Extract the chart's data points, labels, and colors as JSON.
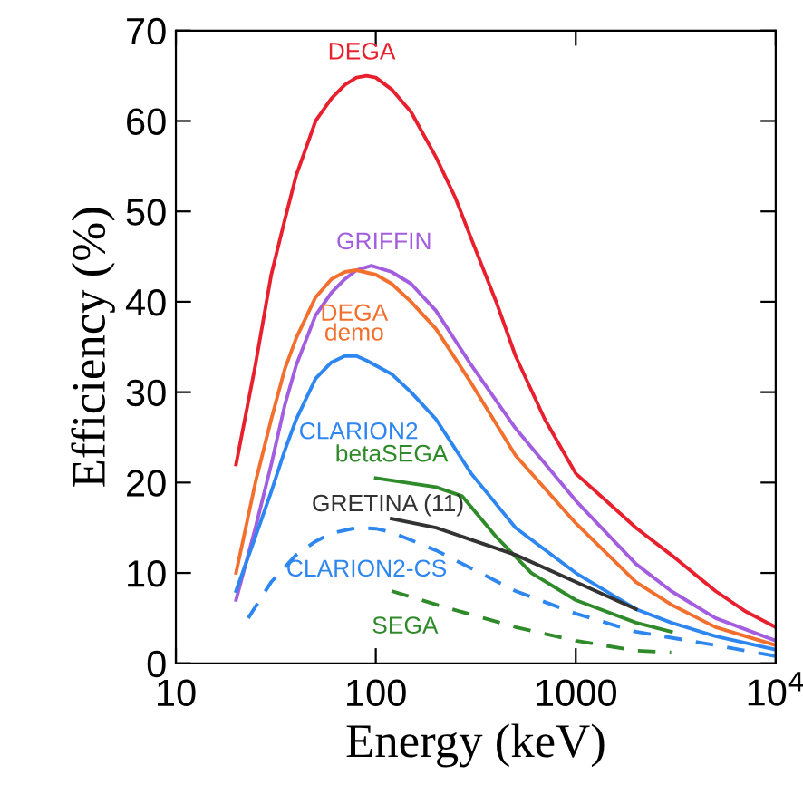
{
  "chart_data": {
    "type": "line",
    "xlabel": "Energy (keV)",
    "ylabel": "Efficiency (%)",
    "log": "x",
    "xlim": [
      10,
      10000
    ],
    "xticks": [
      10,
      100,
      1000,
      {
        "value": 10000,
        "label": "10$^{4}$"
      }
    ],
    "ylim": [
      0,
      70
    ],
    "yticks": [
      0,
      10,
      20,
      30,
      40,
      50,
      60,
      70
    ],
    "grid": false,
    "legend": false,
    "marker": "none",
    "series": [
      {
        "name": "DEGA",
        "color": "#e8202e",
        "line_style": "solid",
        "x": [
          20,
          25,
          30,
          35,
          40,
          50,
          60,
          70,
          80,
          90,
          100,
          120,
          150,
          200,
          250,
          300,
          400,
          500,
          700,
          1000,
          1500,
          2000,
          3000,
          5000,
          7000,
          10000
        ],
        "values": [
          22,
          33,
          43,
          49,
          54,
          60,
          62.5,
          64,
          64.8,
          65,
          64.8,
          63.5,
          61,
          56,
          51.5,
          47,
          40,
          34,
          27,
          21,
          17.5,
          15,
          12,
          8,
          5.8,
          4
        ]
      },
      {
        "name": "GRIFFIN",
        "color": "#a35ee0",
        "line_style": "solid",
        "x": [
          20,
          25,
          30,
          35,
          40,
          50,
          60,
          70,
          80,
          95,
          120,
          150,
          200,
          300,
          500,
          1000,
          2000,
          3000,
          5000,
          10000
        ],
        "values": [
          7,
          15,
          22,
          28.5,
          33,
          38.5,
          41,
          42.5,
          43.5,
          44,
          43.3,
          42,
          39,
          33,
          26,
          18,
          11,
          8,
          5,
          2.5
        ]
      },
      {
        "name": "DEGA\ndemo",
        "color": "#f26f2e",
        "line_style": "solid",
        "x": [
          20,
          25,
          30,
          35,
          40,
          50,
          60,
          70,
          80,
          100,
          120,
          150,
          200,
          300,
          500,
          1000,
          2000,
          3000,
          5000,
          10000
        ],
        "values": [
          10,
          20,
          27,
          32.5,
          36,
          40.5,
          42.5,
          43.3,
          43.5,
          43,
          42,
          40,
          37,
          31,
          23,
          15.5,
          9,
          6.5,
          4,
          2
        ]
      },
      {
        "name": "CLARION2",
        "color": "#2e86f0",
        "line_style": "solid",
        "x": [
          20,
          25,
          30,
          35,
          40,
          50,
          60,
          70,
          80,
          90,
          120,
          150,
          200,
          300,
          500,
          1000,
          2000,
          3000,
          5000,
          10000
        ],
        "values": [
          8,
          14,
          19,
          23.5,
          27,
          31.5,
          33.3,
          34,
          34,
          33.5,
          32,
          30,
          27,
          21,
          15,
          10,
          6,
          4.5,
          3,
          1.5
        ]
      },
      {
        "name": "betaSEGA",
        "color": "#2f8a2a",
        "line_style": "solid",
        "x": [
          100,
          200,
          270,
          400,
          600,
          1000,
          2000,
          3000
        ],
        "values": [
          20.5,
          19.5,
          18.5,
          14,
          10,
          7,
          4.5,
          3.5
        ]
      },
      {
        "name": "GRETINA (11)",
        "color": "#333333",
        "line_style": "solid",
        "x": [
          120,
          200,
          500,
          1000,
          2000
        ],
        "values": [
          16,
          15,
          12,
          9,
          6
        ]
      },
      {
        "name": "CLARION2-CS",
        "color": "#2e86f0",
        "line_style": "dashed",
        "x": [
          23,
          30,
          40,
          50,
          60,
          80,
          100,
          120,
          200,
          500,
          1000,
          2000,
          5000,
          10000
        ],
        "values": [
          5,
          9,
          12,
          13.5,
          14.4,
          15,
          14.9,
          14.5,
          12.5,
          8,
          5.5,
          3.5,
          2,
          0.8
        ]
      },
      {
        "name": "SEGA",
        "color": "#2f8a2a",
        "line_style": "dashed",
        "x": [
          120,
          200,
          500,
          1000,
          2000,
          3000
        ],
        "values": [
          8,
          6.5,
          4,
          2.5,
          1.4,
          1.2
        ]
      }
    ]
  }
}
